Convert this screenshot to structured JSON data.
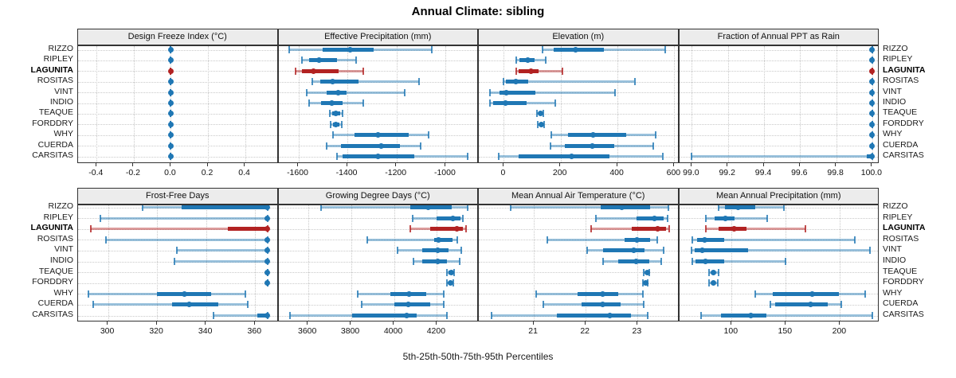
{
  "title": "Annual Climate: sibling",
  "caption": "5th-25th-50th-75th-95th Percentiles",
  "highlight_site": "LAGUNITA",
  "sites": [
    "RIZZO",
    "RIPLEY",
    "LAGUNITA",
    "ROSITAS",
    "VINT",
    "INDIO",
    "TEAQUE",
    "FORDDRY",
    "WHY",
    "CUERDA",
    "CARSITAS"
  ],
  "colors": {
    "series": "#1f77b4",
    "highlight": "#b22222",
    "grid": "#c9c9c9",
    "strip_bg": "#ececec",
    "panel_border": "#333333"
  },
  "chart_data": {
    "type": "interval",
    "subtype": "percentile-dotplot",
    "percentiles": [
      5,
      25,
      50,
      75,
      95
    ],
    "legend_position": "none",
    "grid": "dotted",
    "panels": [
      {
        "title": "Design Freeze Index (°C)",
        "xlim": [
          -0.5,
          0.58
        ],
        "ticks": [
          -0.4,
          -0.2,
          0.0,
          0.2,
          0.4
        ],
        "tick_labels": [
          "-0.4",
          "-0.2",
          "0.0",
          "0.2",
          "0.4"
        ],
        "values": {
          "RIZZO": [
            0,
            0,
            0,
            0,
            0
          ],
          "RIPLEY": [
            0,
            0,
            0,
            0,
            0
          ],
          "LAGUNITA": [
            0,
            0,
            0,
            0,
            0
          ],
          "ROSITAS": [
            0,
            0,
            0,
            0,
            0
          ],
          "VINT": [
            0,
            0,
            0,
            0,
            0
          ],
          "INDIO": [
            0,
            0,
            0,
            0,
            0
          ],
          "TEAQUE": [
            0,
            0,
            0,
            0,
            0
          ],
          "FORDDRY": [
            0,
            0,
            0,
            0,
            0
          ],
          "WHY": [
            0,
            0,
            0,
            0,
            0
          ],
          "CUERDA": [
            0,
            0,
            0,
            0,
            0
          ],
          "CARSITAS": [
            0,
            0,
            0,
            0,
            0
          ]
        }
      },
      {
        "title": "Effective Precipitation (mm)",
        "xlim": [
          -1681,
          -865
        ],
        "ticks": [
          -1600,
          -1400,
          -1200,
          -1000
        ],
        "tick_labels": [
          "-1600",
          "-1400",
          "-1200",
          "-1000"
        ],
        "values": {
          "RIZZO": [
            -1636,
            -1501,
            -1390,
            -1295,
            -1057
          ],
          "RIPLEY": [
            -1585,
            -1555,
            -1515,
            -1441,
            -1365
          ],
          "LAGUNITA": [
            -1611,
            -1587,
            -1538,
            -1436,
            -1336
          ],
          "ROSITAS": [
            -1544,
            -1511,
            -1461,
            -1355,
            -1109
          ],
          "VINT": [
            -1565,
            -1484,
            -1438,
            -1403,
            -1168
          ],
          "INDIO": [
            -1557,
            -1506,
            -1463,
            -1419,
            -1336
          ],
          "TEAQUE": [
            -1471,
            -1463,
            -1449,
            -1430,
            -1419
          ],
          "FORDDRY": [
            -1468,
            -1460,
            -1446,
            -1432,
            -1422
          ],
          "WHY": [
            -1459,
            -1371,
            -1277,
            -1149,
            -1068
          ],
          "CUERDA": [
            -1484,
            -1425,
            -1263,
            -1187,
            -1103
          ],
          "CARSITAS": [
            -1444,
            -1419,
            -1276,
            -1128,
            -911
          ]
        }
      },
      {
        "title": "Elevation (m)",
        "xlim": [
          -88,
          617
        ],
        "ticks": [
          0,
          200,
          400,
          600
        ],
        "tick_labels": [
          "0",
          "200",
          "400",
          "600"
        ],
        "values": {
          "RIZZO": [
            135,
            174,
            253,
            351,
            567
          ],
          "RIPLEY": [
            45,
            56,
            83,
            108,
            147
          ],
          "LAGUNITA": [
            45,
            52,
            95,
            122,
            206
          ],
          "ROSITAS": [
            -2,
            8,
            41,
            85,
            460
          ],
          "VINT": [
            -50,
            -14,
            8,
            110,
            390
          ],
          "INDIO": [
            -50,
            -38,
            7,
            80,
            180
          ],
          "TEAQUE": [
            116,
            123,
            130,
            134,
            139
          ],
          "FORDDRY": [
            118,
            124,
            131,
            136,
            141
          ],
          "WHY": [
            167,
            225,
            315,
            430,
            535
          ],
          "CUERDA": [
            163,
            216,
            310,
            390,
            527
          ],
          "CARSITAS": [
            -17,
            53,
            239,
            371,
            558
          ]
        }
      },
      {
        "title": "Fraction of Annual PPT as Rain",
        "xlim": [
          98.93,
          100.04
        ],
        "ticks": [
          99.0,
          99.2,
          99.4,
          99.6,
          99.8,
          100.0
        ],
        "tick_labels": [
          "99.0",
          "99.2",
          "99.4",
          "99.6",
          "99.8",
          "100.0"
        ],
        "values": {
          "RIZZO": [
            100,
            100,
            100,
            100,
            100
          ],
          "RIPLEY": [
            100,
            100,
            100,
            100,
            100
          ],
          "LAGUNITA": [
            100,
            100,
            100,
            100,
            100
          ],
          "ROSITAS": [
            100,
            100,
            100,
            100,
            100
          ],
          "VINT": [
            100,
            100,
            100,
            100,
            100
          ],
          "INDIO": [
            100,
            100,
            100,
            100,
            100
          ],
          "TEAQUE": [
            100,
            100,
            100,
            100,
            100
          ],
          "FORDDRY": [
            100,
            100,
            100,
            100,
            100
          ],
          "WHY": [
            100,
            100,
            100,
            100,
            100
          ],
          "CUERDA": [
            100,
            100,
            100,
            100,
            100
          ],
          "CARSITAS": [
            99.0,
            99.97,
            100,
            100,
            100
          ]
        }
      },
      {
        "title": "Frost-Free Days",
        "xlim": [
          287.8,
          369.5
        ],
        "ticks": [
          300,
          320,
          340,
          360
        ],
        "tick_labels": [
          "300",
          "320",
          "340",
          "360"
        ],
        "values": {
          "RIZZO": [
            314,
            330,
            365,
            365,
            365
          ],
          "RIPLEY": [
            297,
            364,
            365,
            365,
            365
          ],
          "LAGUNITA": [
            293,
            349,
            365,
            365,
            365
          ],
          "ROSITAS": [
            299,
            364,
            365,
            365,
            365
          ],
          "VINT": [
            328,
            364,
            365,
            365,
            365
          ],
          "INDIO": [
            327,
            364,
            365,
            365,
            365
          ],
          "TEAQUE": [
            365,
            365,
            365,
            365,
            365
          ],
          "FORDDRY": [
            365,
            365,
            365,
            365,
            365
          ],
          "WHY": [
            292,
            320,
            331,
            342,
            356
          ],
          "CUERDA": [
            294,
            326,
            333,
            345,
            357
          ],
          "CARSITAS": [
            343,
            361,
            365,
            365,
            365
          ]
        }
      },
      {
        "title": "Growing Degree Days (°C)",
        "xlim": [
          3462,
          4395
        ],
        "ticks": [
          3600,
          3800,
          4000,
          4200
        ],
        "tick_labels": [
          "3600",
          "3800",
          "4000",
          "4200"
        ],
        "values": {
          "RIZZO": [
            3662,
            4075,
            4159,
            4270,
            4344
          ],
          "RIPLEY": [
            4088,
            4199,
            4273,
            4310,
            4319
          ],
          "LAGUNITA": [
            4075,
            4168,
            4291,
            4322,
            4335
          ],
          "ROSITAS": [
            3874,
            4186,
            4207,
            4273,
            4295
          ],
          "VINT": [
            4016,
            4131,
            4205,
            4254,
            4312
          ],
          "INDIO": [
            4090,
            4131,
            4205,
            4248,
            4307
          ],
          "TEAQUE": [
            4248,
            4255,
            4267,
            4273,
            4279
          ],
          "FORDDRY": [
            4246,
            4253,
            4264,
            4271,
            4277
          ],
          "WHY": [
            3831,
            3983,
            4072,
            4149,
            4233
          ],
          "CUERDA": [
            3851,
            4001,
            4067,
            4168,
            4233
          ],
          "CARSITAS": [
            3517,
            3804,
            4060,
            4106,
            4246
          ]
        }
      },
      {
        "title": "Mean Annual Air Temperature (°C)",
        "xlim": [
          19.94,
          23.8
        ],
        "ticks": [
          21,
          22,
          23
        ],
        "tick_labels": [
          "21",
          "22",
          "23"
        ],
        "values": {
          "RIZZO": [
            20.56,
            22.29,
            22.7,
            23.24,
            23.59
          ],
          "RIPLEY": [
            22.19,
            22.98,
            23.33,
            23.5,
            23.58
          ],
          "LAGUNITA": [
            22.1,
            22.88,
            23.38,
            23.55,
            23.6
          ],
          "ROSITAS": [
            21.26,
            22.75,
            22.99,
            23.24,
            23.38
          ],
          "VINT": [
            22.03,
            22.34,
            22.92,
            23.14,
            23.5
          ],
          "INDIO": [
            22.34,
            22.63,
            22.97,
            23.22,
            23.46
          ],
          "TEAQUE": [
            23.12,
            23.15,
            23.18,
            23.2,
            23.22
          ],
          "FORDDRY": [
            23.1,
            23.13,
            23.16,
            23.18,
            23.2
          ],
          "WHY": [
            21.05,
            21.85,
            22.32,
            22.63,
            23.1
          ],
          "CUERDA": [
            21.19,
            21.92,
            22.33,
            22.67,
            23.12
          ],
          "CARSITAS": [
            20.18,
            21.44,
            22.46,
            22.88,
            23.2
          ]
        }
      },
      {
        "title": "Mean Annual Precipitation (mm)",
        "xlim": [
          51.6,
          236.5
        ],
        "ticks": [
          100,
          150,
          200
        ],
        "tick_labels": [
          "100",
          "150",
          "200"
        ],
        "values": {
          "RIZZO": [
            88,
            94,
            106,
            122,
            148
          ],
          "RIPLEY": [
            76,
            84,
            94,
            103,
            133
          ],
          "LAGUNITA": [
            76,
            88,
            102,
            114,
            168
          ],
          "ROSITAS": [
            64,
            68,
            75,
            93,
            214
          ],
          "VINT": [
            63,
            66,
            73,
            115,
            228
          ],
          "INDIO": [
            64,
            67,
            76,
            93,
            150
          ],
          "TEAQUE": [
            79,
            81,
            83,
            85,
            88
          ],
          "FORDDRY": [
            79,
            81,
            83,
            85,
            87
          ],
          "WHY": [
            122,
            138,
            174,
            199,
            223
          ],
          "CUERDA": [
            136,
            140,
            173,
            189,
            201
          ],
          "CARSITAS": [
            72,
            90,
            118,
            132,
            230
          ]
        }
      }
    ]
  }
}
